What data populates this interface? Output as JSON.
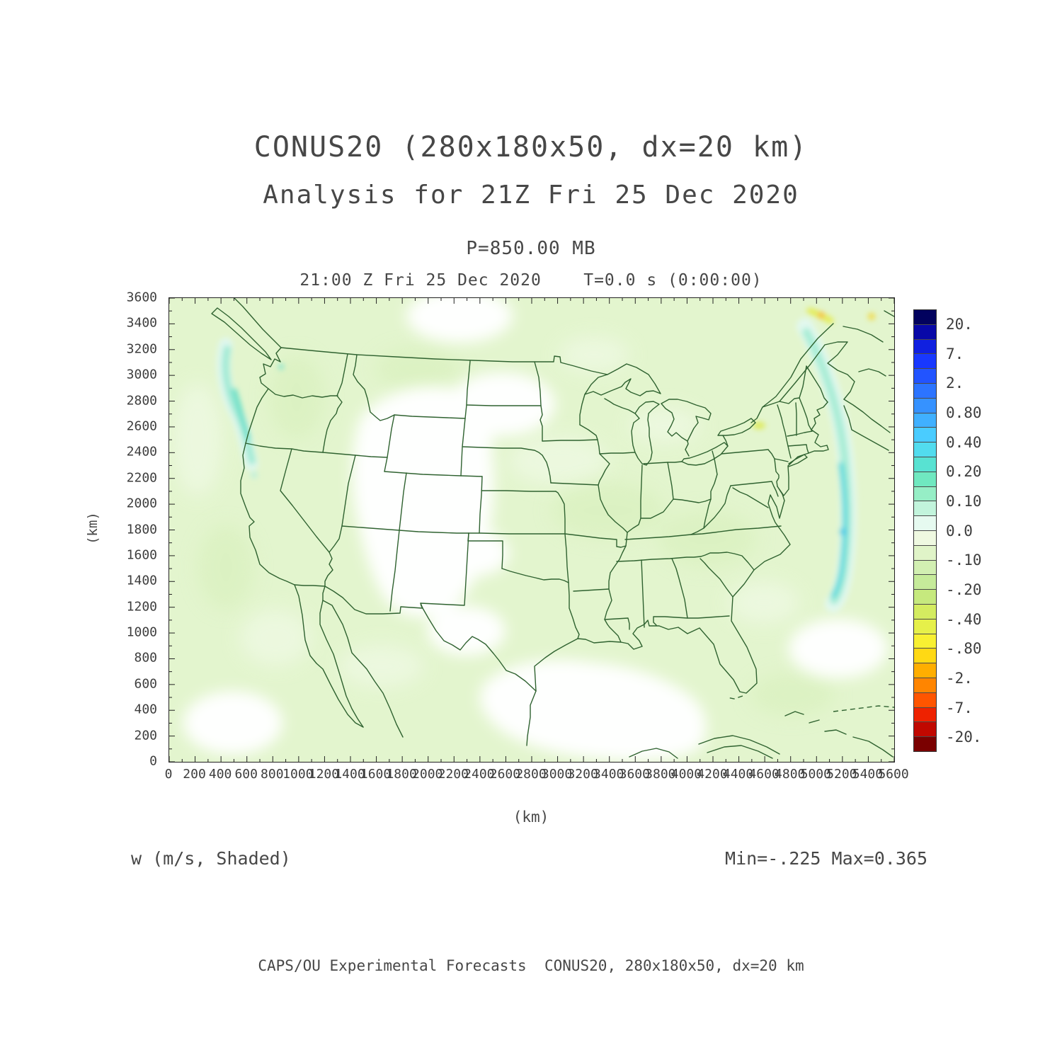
{
  "header": {
    "title_line1": "CONUS20 (280x180x50, dx=20 km)",
    "title_line2": "Analysis for 21Z Fri 25 Dec 2020",
    "level_label": "P=850.00 MB",
    "time_label": "21:00 Z Fri 25 Dec 2020    T=0.0 s (0:00:00)"
  },
  "axes": {
    "x": {
      "unit_label": "(km)",
      "min": 0,
      "max": 5600,
      "label_step": 200,
      "minor_step": 100,
      "tick_labels": [
        "0",
        "200",
        "400",
        "600",
        "800",
        "1000",
        "1200",
        "1400",
        "1600",
        "1800",
        "2000",
        "2200",
        "2400",
        "2600",
        "2800",
        "3000",
        "3200",
        "3400",
        "3600",
        "3800",
        "4000",
        "4200",
        "4400",
        "4600",
        "4800",
        "5000",
        "5200",
        "5400",
        "5600"
      ]
    },
    "y": {
      "unit_label": "(km)",
      "min": 0,
      "max": 3600,
      "label_step": 200,
      "minor_step": 100,
      "tick_labels": [
        "0",
        "200",
        "400",
        "600",
        "800",
        "1000",
        "1200",
        "1400",
        "1600",
        "1800",
        "2000",
        "2200",
        "2400",
        "2600",
        "2800",
        "3000",
        "3200",
        "3400",
        "3600"
      ]
    }
  },
  "colorbar": {
    "labels": [
      "20.",
      "7.",
      "2.",
      "0.80",
      "0.40",
      "0.20",
      "0.10",
      "0.0",
      "-.10",
      "-.20",
      "-.40",
      "-.80",
      "-2.",
      "-7.",
      "-20."
    ],
    "colors": [
      "#02025E",
      "#0808A8",
      "#1020E0",
      "#1838FF",
      "#2254FF",
      "#2C74FF",
      "#3692FF",
      "#40B0FF",
      "#4ACCFF",
      "#52DCEE",
      "#58E2D2",
      "#70E8C0",
      "#96EEC6",
      "#C2F4DC",
      "#E6FAF0",
      "#EFF9E1",
      "#E0F4C8",
      "#D2EFB2",
      "#C6EB9A",
      "#C6E97E",
      "#D4EC60",
      "#E6F04A",
      "#F8F032",
      "#FFD914",
      "#FFAE00",
      "#FF8500",
      "#FF5500",
      "#EE2200",
      "#C00800",
      "#7A0000"
    ]
  },
  "annotations": {
    "field_label": "w (m/s, Shaded)",
    "minmax_label": "Min=-.225 Max=0.365"
  },
  "footer_credit": "CAPS/OU Experimental Forecasts  CONUS20, 280x180x50, dx=20 km",
  "palette": {
    "background": "#ffffff",
    "shade_base_green": "#e3f5ce",
    "near_zero_white": "#fefffe",
    "updraft_cyan": "#4ed8dc",
    "downdraft_yellow": "#e4ec52",
    "map_line_green": "#2f6230",
    "text_gray": "#474747",
    "axis_black": "#222222"
  },
  "chart_data": {
    "type": "heatmap",
    "title": "CONUS20 (280x180x50, dx=20 km)",
    "subtitle": "Analysis for 21Z Fri 25 Dec 2020",
    "variable": "w",
    "units": "m/s",
    "render_style": "Shaded",
    "pressure_level_mb": 850.0,
    "valid_time": "21:00 Z Fri 25 Dec 2020",
    "forecast_time_s": 0.0,
    "forecast_time_hms": "0:00:00",
    "min_value": -0.225,
    "max_value": 0.365,
    "xlabel": "(km)",
    "ylabel": "(km)",
    "xlim": [
      0,
      5600
    ],
    "ylim": [
      0,
      3600
    ],
    "grid_dimensions": "280x180x50",
    "grid_spacing_km": 20,
    "colorbar_levels": [
      20,
      7,
      2,
      0.8,
      0.4,
      0.2,
      0.1,
      0.0,
      -0.1,
      -0.2,
      -0.4,
      -0.8,
      -2,
      -7,
      -20
    ],
    "region": "Continental United States with state and national boundaries",
    "notable_features": [
      "Weak ascent (cyan shading, ~+0.1 to +0.4 m/s) in streaks offshore of the Pacific Northwest coast",
      "Long arc of ascent (cyan) off the East Coast from the Gulf of St. Lawrence down past Cape Hatteras",
      "Small descent maxima (yellow/orange) over the Gulf of St. Lawrence and near eastern Lake Ontario",
      "Near-zero vertical motion (white) over the Intermountain West, western Plains and south Texas / western Gulf",
      "Weak descent (pale green, 0 to -0.1 m/s) over most of the remainder of the domain"
    ]
  }
}
